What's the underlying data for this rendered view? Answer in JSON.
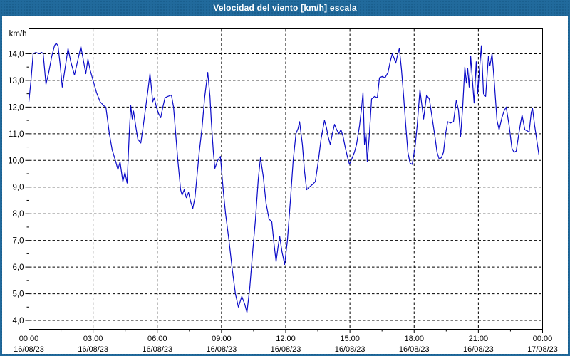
{
  "window": {
    "title": "Velocidad del viento [km/h] escala"
  },
  "chart_data": {
    "type": "line",
    "title": "Velocidad del viento [km/h] escala",
    "unit_label": "km/h",
    "grid": {
      "style": "dashed",
      "h_lines_values": [
        14,
        13,
        12,
        11,
        10,
        9,
        8,
        7,
        6,
        5,
        4
      ],
      "v_lines_hours": [
        3,
        6,
        9,
        12,
        15,
        18,
        21
      ]
    },
    "y_axis": {
      "min": 4.0,
      "max": 14.0,
      "tick_step": 1.0,
      "minor_tick_step": 0.5,
      "tick_labels": [
        "14,0",
        "13,0",
        "12,0",
        "11,0",
        "10,0",
        "9,0",
        "8,0",
        "7,0",
        "6,0",
        "5,0",
        "4,0"
      ]
    },
    "x_axis": {
      "range_hours": [
        0,
        24
      ],
      "minor_tick_hours": 1.5,
      "ticks": [
        {
          "hour": 0,
          "time": "00:00",
          "date": "16/08/23"
        },
        {
          "hour": 3,
          "time": "03:00",
          "date": "16/08/23"
        },
        {
          "hour": 6,
          "time": "06:00",
          "date": "16/08/23"
        },
        {
          "hour": 9,
          "time": "09:00",
          "date": "16/08/23"
        },
        {
          "hour": 12,
          "time": "12:00",
          "date": "16/08/23"
        },
        {
          "hour": 15,
          "time": "15:00",
          "date": "16/08/23"
        },
        {
          "hour": 18,
          "time": "18:00",
          "date": "16/08/23"
        },
        {
          "hour": 21,
          "time": "21:00",
          "date": "16/08/23"
        },
        {
          "hour": 24,
          "time": "00:00",
          "date": "17/08/23"
        }
      ]
    },
    "series": [
      {
        "name": "Velocidad del viento",
        "color": "#0a0ac8",
        "points": [
          [
            0.0,
            12.2
          ],
          [
            0.1,
            13.0
          ],
          [
            0.2,
            14.0
          ],
          [
            0.33,
            14.05
          ],
          [
            0.47,
            14.0
          ],
          [
            0.6,
            14.05
          ],
          [
            0.67,
            14.0
          ],
          [
            0.8,
            12.85
          ],
          [
            0.93,
            13.3
          ],
          [
            1.07,
            13.9
          ],
          [
            1.2,
            14.3
          ],
          [
            1.27,
            14.4
          ],
          [
            1.36,
            14.3
          ],
          [
            1.46,
            13.6
          ],
          [
            1.56,
            12.75
          ],
          [
            1.7,
            13.5
          ],
          [
            1.83,
            14.2
          ],
          [
            1.96,
            13.7
          ],
          [
            2.13,
            13.2
          ],
          [
            2.3,
            13.8
          ],
          [
            2.43,
            14.27
          ],
          [
            2.56,
            13.7
          ],
          [
            2.66,
            13.25
          ],
          [
            2.76,
            13.8
          ],
          [
            2.86,
            13.4
          ],
          [
            3.0,
            13.0
          ],
          [
            3.16,
            12.55
          ],
          [
            3.33,
            12.2
          ],
          [
            3.5,
            12.05
          ],
          [
            3.6,
            12.0
          ],
          [
            3.76,
            11.0
          ],
          [
            3.89,
            10.4
          ],
          [
            4.06,
            9.95
          ],
          [
            4.16,
            9.65
          ],
          [
            4.26,
            9.95
          ],
          [
            4.39,
            9.2
          ],
          [
            4.49,
            9.55
          ],
          [
            4.59,
            9.15
          ],
          [
            4.69,
            11.0
          ],
          [
            4.76,
            12.05
          ],
          [
            4.83,
            11.55
          ],
          [
            4.89,
            11.85
          ],
          [
            4.99,
            11.3
          ],
          [
            5.09,
            10.8
          ],
          [
            5.23,
            10.65
          ],
          [
            5.33,
            11.2
          ],
          [
            5.46,
            12.0
          ],
          [
            5.56,
            12.6
          ],
          [
            5.66,
            13.25
          ],
          [
            5.73,
            12.7
          ],
          [
            5.79,
            12.2
          ],
          [
            5.86,
            12.35
          ],
          [
            5.96,
            12.0
          ],
          [
            6.06,
            11.75
          ],
          [
            6.16,
            11.6
          ],
          [
            6.26,
            12.0
          ],
          [
            6.36,
            12.35
          ],
          [
            6.49,
            12.4
          ],
          [
            6.66,
            12.45
          ],
          [
            6.76,
            12.0
          ],
          [
            6.86,
            11.0
          ],
          [
            6.96,
            10.0
          ],
          [
            7.02,
            9.5
          ],
          [
            7.09,
            8.9
          ],
          [
            7.16,
            8.7
          ],
          [
            7.26,
            8.9
          ],
          [
            7.36,
            8.6
          ],
          [
            7.46,
            8.8
          ],
          [
            7.56,
            8.45
          ],
          [
            7.66,
            8.2
          ],
          [
            7.76,
            8.6
          ],
          [
            7.82,
            9.1
          ],
          [
            7.96,
            10.3
          ],
          [
            8.09,
            11.2
          ],
          [
            8.22,
            12.4
          ],
          [
            8.36,
            13.3
          ],
          [
            8.46,
            12.4
          ],
          [
            8.52,
            11.5
          ],
          [
            8.62,
            10.3
          ],
          [
            8.69,
            9.7
          ],
          [
            8.82,
            10.0
          ],
          [
            8.95,
            10.15
          ],
          [
            9.09,
            8.8
          ],
          [
            9.19,
            8.0
          ],
          [
            9.35,
            7.0
          ],
          [
            9.49,
            6.0
          ],
          [
            9.65,
            5.0
          ],
          [
            9.79,
            4.5
          ],
          [
            9.95,
            4.9
          ],
          [
            10.09,
            4.6
          ],
          [
            10.19,
            4.3
          ],
          [
            10.32,
            5.2
          ],
          [
            10.45,
            6.5
          ],
          [
            10.59,
            7.8
          ],
          [
            10.72,
            9.3
          ],
          [
            10.82,
            10.1
          ],
          [
            10.95,
            9.4
          ],
          [
            11.08,
            8.4
          ],
          [
            11.22,
            7.8
          ],
          [
            11.35,
            7.7
          ],
          [
            11.45,
            6.9
          ],
          [
            11.55,
            6.2
          ],
          [
            11.65,
            6.8
          ],
          [
            11.72,
            7.15
          ],
          [
            11.82,
            6.6
          ],
          [
            11.95,
            6.1
          ],
          [
            12.08,
            7.0
          ],
          [
            12.22,
            8.5
          ],
          [
            12.35,
            10.0
          ],
          [
            12.48,
            11.0
          ],
          [
            12.58,
            11.2
          ],
          [
            12.65,
            11.45
          ],
          [
            12.78,
            10.6
          ],
          [
            12.88,
            9.6
          ],
          [
            12.98,
            8.9
          ],
          [
            13.11,
            9.0
          ],
          [
            13.25,
            9.1
          ],
          [
            13.38,
            9.2
          ],
          [
            13.51,
            9.9
          ],
          [
            13.65,
            10.8
          ],
          [
            13.81,
            11.5
          ],
          [
            13.91,
            11.2
          ],
          [
            13.98,
            10.9
          ],
          [
            14.08,
            10.6
          ],
          [
            14.18,
            11.0
          ],
          [
            14.28,
            11.35
          ],
          [
            14.38,
            11.15
          ],
          [
            14.48,
            11.0
          ],
          [
            14.58,
            11.15
          ],
          [
            14.68,
            10.9
          ],
          [
            14.78,
            10.5
          ],
          [
            14.88,
            10.15
          ],
          [
            14.98,
            9.85
          ],
          [
            15.11,
            10.1
          ],
          [
            15.21,
            10.3
          ],
          [
            15.31,
            10.6
          ],
          [
            15.45,
            11.3
          ],
          [
            15.55,
            12.0
          ],
          [
            15.61,
            12.55
          ],
          [
            15.68,
            10.6
          ],
          [
            15.75,
            11.0
          ],
          [
            15.81,
            9.95
          ],
          [
            15.91,
            11.0
          ],
          [
            16.01,
            12.3
          ],
          [
            16.15,
            12.4
          ],
          [
            16.28,
            12.35
          ],
          [
            16.38,
            13.1
          ],
          [
            16.51,
            13.15
          ],
          [
            16.64,
            13.1
          ],
          [
            16.78,
            13.3
          ],
          [
            16.88,
            13.7
          ],
          [
            16.98,
            14.0
          ],
          [
            17.08,
            13.8
          ],
          [
            17.14,
            13.65
          ],
          [
            17.24,
            14.0
          ],
          [
            17.31,
            14.2
          ],
          [
            17.41,
            13.4
          ],
          [
            17.51,
            12.4
          ],
          [
            17.61,
            11.3
          ],
          [
            17.71,
            10.3
          ],
          [
            17.81,
            9.9
          ],
          [
            17.91,
            9.85
          ],
          [
            18.04,
            10.5
          ],
          [
            18.14,
            11.3
          ],
          [
            18.27,
            12.65
          ],
          [
            18.37,
            12.0
          ],
          [
            18.44,
            11.55
          ],
          [
            18.58,
            12.45
          ],
          [
            18.71,
            12.3
          ],
          [
            18.84,
            11.6
          ],
          [
            18.97,
            10.9
          ],
          [
            19.07,
            10.3
          ],
          [
            19.17,
            10.05
          ],
          [
            19.27,
            10.1
          ],
          [
            19.37,
            10.3
          ],
          [
            19.47,
            11.0
          ],
          [
            19.57,
            11.45
          ],
          [
            19.7,
            11.4
          ],
          [
            19.84,
            11.45
          ],
          [
            19.97,
            12.25
          ],
          [
            20.07,
            11.9
          ],
          [
            20.17,
            10.9
          ],
          [
            20.27,
            12.0
          ],
          [
            20.37,
            13.5
          ],
          [
            20.44,
            12.9
          ],
          [
            20.5,
            13.45
          ],
          [
            20.57,
            12.75
          ],
          [
            20.64,
            13.9
          ],
          [
            20.74,
            12.8
          ],
          [
            20.8,
            12.15
          ],
          [
            20.9,
            13.7
          ],
          [
            20.97,
            12.5
          ],
          [
            21.04,
            13.3
          ],
          [
            21.14,
            14.3
          ],
          [
            21.24,
            12.5
          ],
          [
            21.34,
            12.4
          ],
          [
            21.47,
            13.9
          ],
          [
            21.54,
            13.55
          ],
          [
            21.64,
            14.0
          ],
          [
            21.74,
            13.0
          ],
          [
            21.87,
            11.5
          ],
          [
            21.97,
            11.15
          ],
          [
            22.1,
            11.6
          ],
          [
            22.2,
            11.85
          ],
          [
            22.3,
            12.0
          ],
          [
            22.44,
            11.3
          ],
          [
            22.57,
            10.45
          ],
          [
            22.67,
            10.3
          ],
          [
            22.77,
            10.35
          ],
          [
            22.87,
            10.9
          ],
          [
            22.97,
            11.4
          ],
          [
            23.04,
            11.7
          ],
          [
            23.17,
            11.15
          ],
          [
            23.3,
            11.1
          ],
          [
            23.37,
            11.05
          ],
          [
            23.47,
            11.8
          ],
          [
            23.53,
            11.95
          ],
          [
            23.63,
            11.3
          ],
          [
            23.73,
            10.75
          ],
          [
            23.83,
            10.2
          ]
        ]
      }
    ]
  },
  "colors": {
    "titlebar_bg": "#216a9c",
    "titlebar_text": "#ffffff",
    "plot_bg": "#ffffff",
    "grid": "#000000",
    "axis_text": "#000000",
    "line": "#0a0ac8"
  }
}
